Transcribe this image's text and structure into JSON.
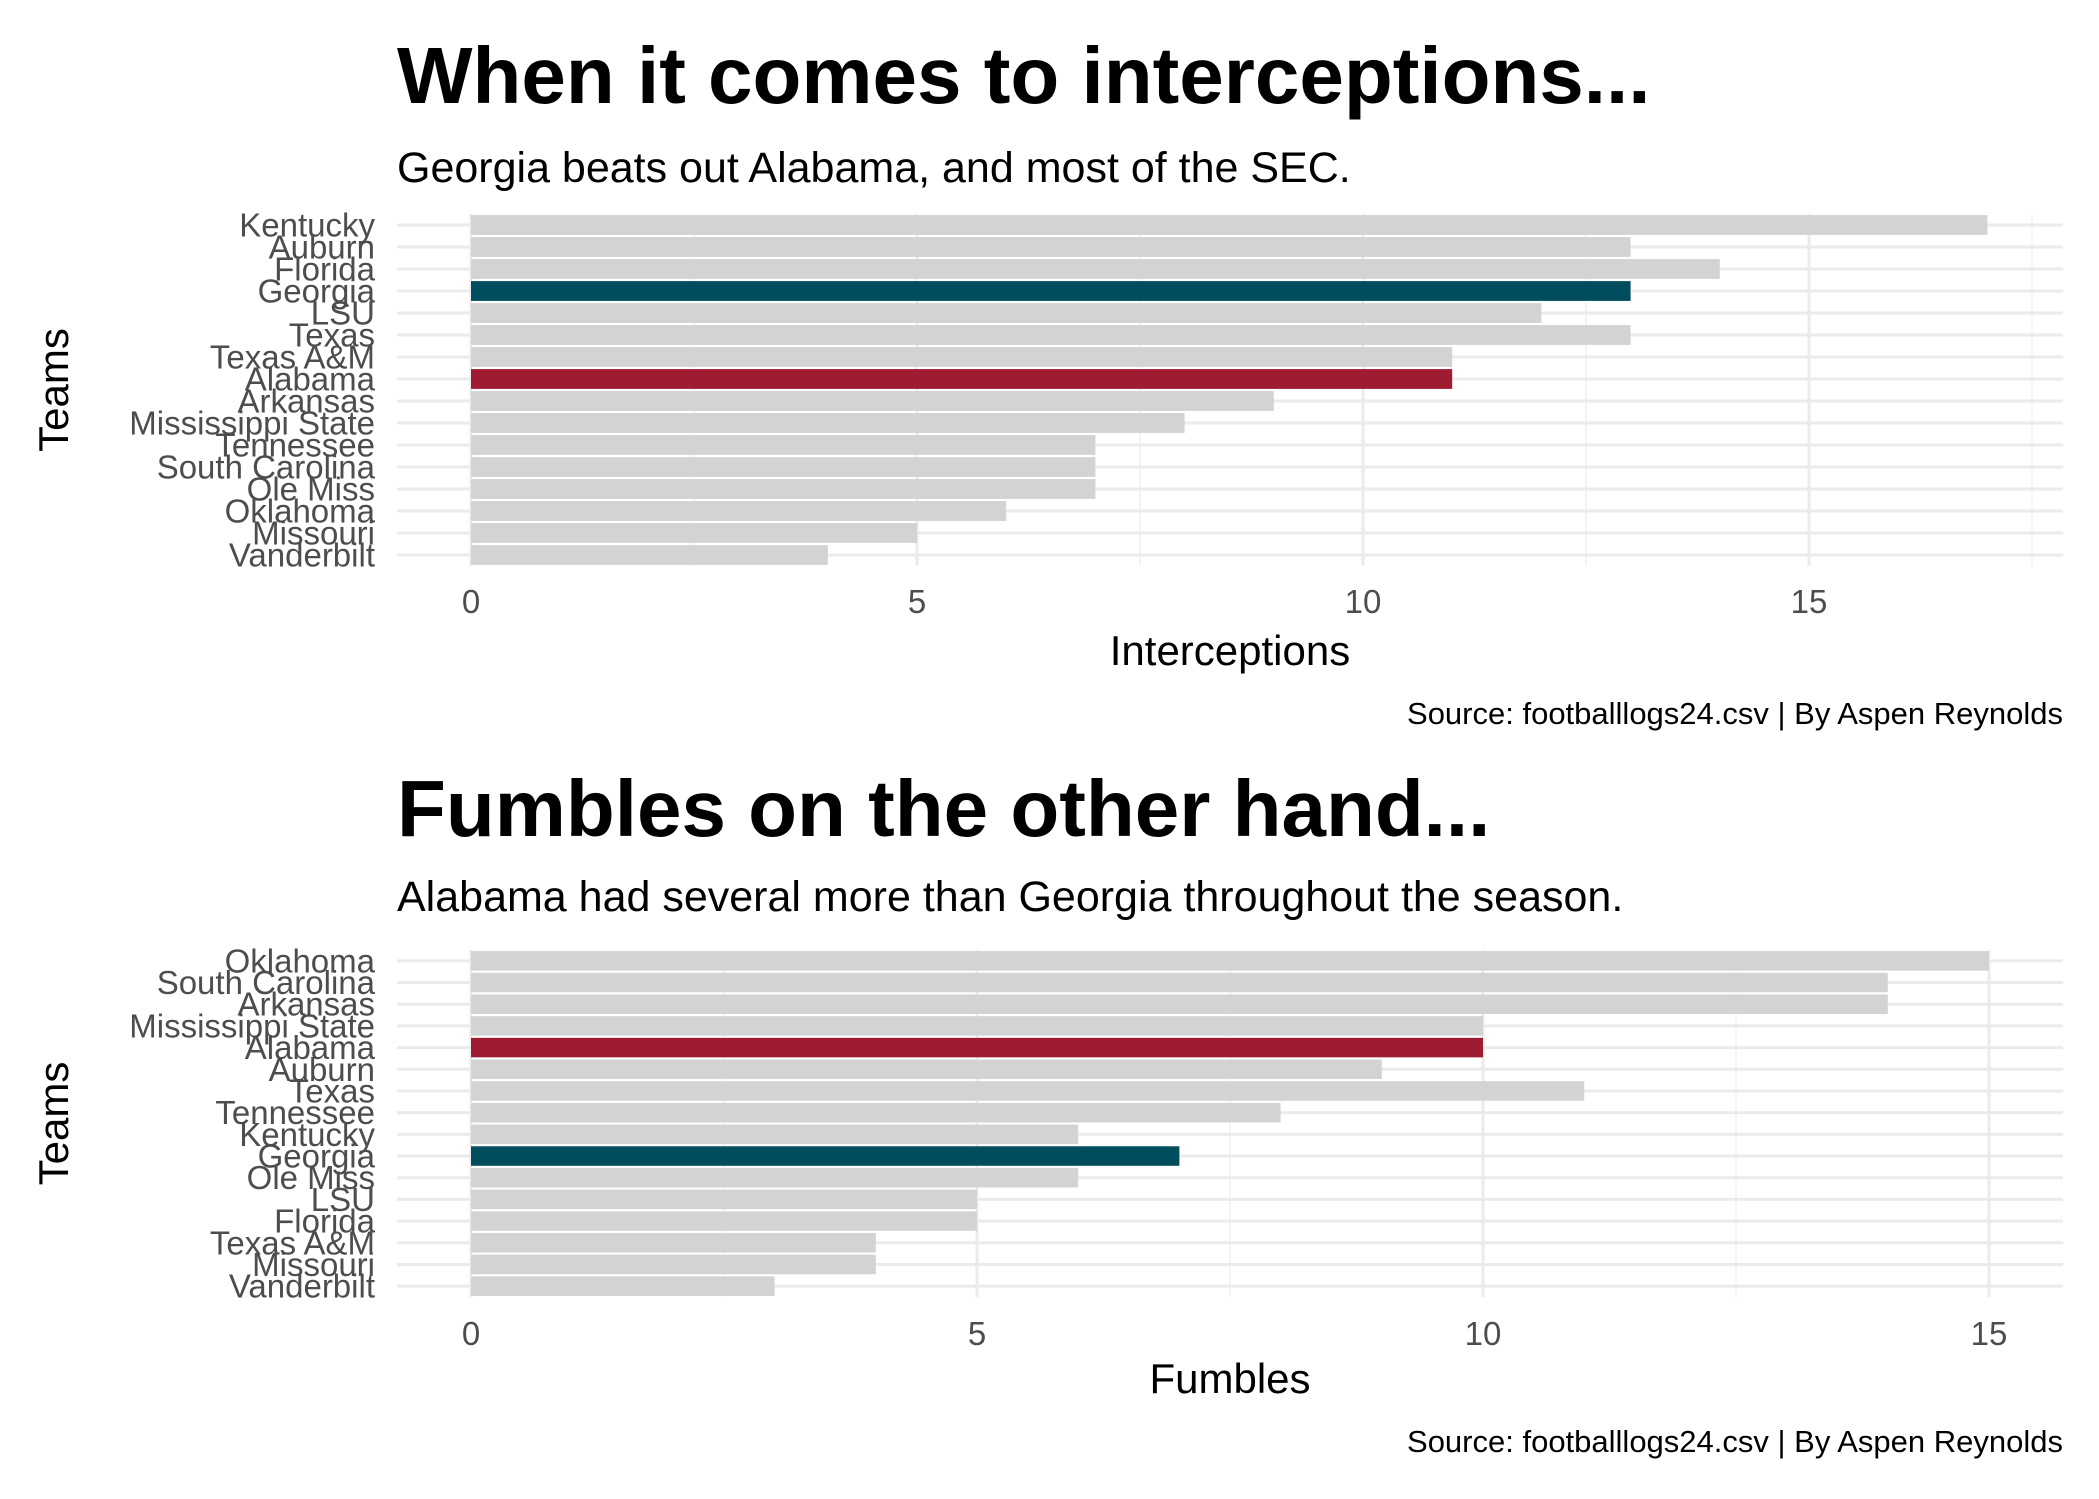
{
  "colors": {
    "bar_default": "#d3d3d3",
    "highlight_georgia": "#004d5e",
    "highlight_alabama": "#9e1b32",
    "grid_major": "#ebebeb",
    "grid_minor": "#f4f4f4"
  },
  "chart_data": [
    {
      "type": "bar",
      "orientation": "horizontal",
      "title": "When it comes to interceptions...",
      "subtitle": "Georgia beats out Alabama, and most of the SEC.",
      "xlabel": "Interceptions",
      "ylabel": "Teams",
      "caption": "Source: footballlogs24.csv | By Aspen Reynolds",
      "xlim": [
        0,
        17.8
      ],
      "x_ticks": [
        0,
        5,
        10,
        15
      ],
      "grid": true,
      "legend": "none",
      "categories": [
        "Kentucky",
        "Auburn",
        "Florida",
        "Georgia",
        "LSU",
        "Texas",
        "Texas A&M",
        "Alabama",
        "Arkansas",
        "Mississippi State",
        "Tennessee",
        "South Carolina",
        "Ole Miss",
        "Oklahoma",
        "Missouri",
        "Vanderbilt"
      ],
      "values": [
        17,
        13,
        14,
        13,
        12,
        13,
        11,
        11,
        9,
        8,
        7,
        7,
        7,
        6,
        5,
        4
      ],
      "highlight": {
        "Georgia": "highlight_georgia",
        "Alabama": "highlight_alabama"
      }
    },
    {
      "type": "bar",
      "orientation": "horizontal",
      "title": "Fumbles on the other hand...",
      "subtitle": "Alabama had several more than Georgia throughout the season.",
      "xlabel": "Fumbles",
      "ylabel": "Teams",
      "caption": "Source: footballlogs24.csv | By Aspen Reynolds",
      "xlim": [
        0,
        15.75
      ],
      "x_ticks": [
        0,
        5,
        10,
        15
      ],
      "grid": true,
      "legend": "none",
      "categories": [
        "Oklahoma",
        "South Carolina",
        "Arkansas",
        "Mississippi State",
        "Alabama",
        "Auburn",
        "Texas",
        "Tennessee",
        "Kentucky",
        "Georgia",
        "Ole Miss",
        "LSU",
        "Florida",
        "Texas A&M",
        "Missouri",
        "Vanderbilt"
      ],
      "values": [
        15,
        14,
        14,
        10,
        10,
        9,
        11,
        8,
        6,
        7,
        6,
        5,
        5,
        4,
        4,
        3
      ],
      "highlight": {
        "Georgia": "highlight_georgia",
        "Alabama": "highlight_alabama"
      }
    }
  ]
}
